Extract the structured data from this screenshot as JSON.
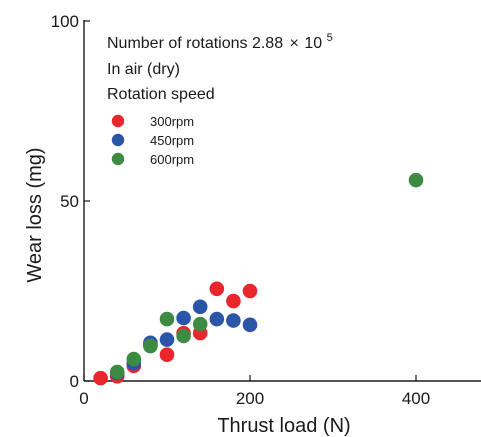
{
  "chart_data": {
    "type": "scatter",
    "xlabel": "Thrust load (N)",
    "ylabel": "Wear loss (mg)",
    "xlim": [
      0,
      480
    ],
    "ylim": [
      0,
      100
    ],
    "x_ticks": [
      0,
      200,
      400
    ],
    "y_ticks": [
      0,
      50,
      100
    ],
    "x_tick_labels": [
      "0",
      "200",
      "400"
    ],
    "y_tick_labels": [
      "0",
      "50",
      "100"
    ],
    "annotations": {
      "line1_prefix": "Number of rotations  2.88",
      "line1_times": "×",
      "line1_base": "10",
      "line1_exp": "5",
      "line2": "In air (dry)",
      "line3": "Rotation speed"
    },
    "legend_position": "top-left",
    "series": [
      {
        "name": "300rpm",
        "color": "#e8262b",
        "points": [
          {
            "x": 20,
            "y": 0.8
          },
          {
            "x": 40,
            "y": 1.3
          },
          {
            "x": 60,
            "y": 4.2
          },
          {
            "x": 80,
            "y": 10.0
          },
          {
            "x": 100,
            "y": 7.3
          },
          {
            "x": 120,
            "y": 13.3
          },
          {
            "x": 140,
            "y": 13.3
          },
          {
            "x": 160,
            "y": 25.6
          },
          {
            "x": 180,
            "y": 22.2
          },
          {
            "x": 200,
            "y": 25.0
          }
        ]
      },
      {
        "name": "450rpm",
        "color": "#2b55a8",
        "points": [
          {
            "x": 40,
            "y": 2.2
          },
          {
            "x": 60,
            "y": 4.9
          },
          {
            "x": 80,
            "y": 10.6
          },
          {
            "x": 100,
            "y": 11.5
          },
          {
            "x": 120,
            "y": 17.5
          },
          {
            "x": 140,
            "y": 20.6
          },
          {
            "x": 160,
            "y": 17.2
          },
          {
            "x": 180,
            "y": 16.8
          },
          {
            "x": 200,
            "y": 15.6
          }
        ]
      },
      {
        "name": "600rpm",
        "color": "#3d8a43",
        "points": [
          {
            "x": 40,
            "y": 2.5
          },
          {
            "x": 60,
            "y": 6.1
          },
          {
            "x": 80,
            "y": 9.7
          },
          {
            "x": 100,
            "y": 17.2
          },
          {
            "x": 120,
            "y": 12.5
          },
          {
            "x": 140,
            "y": 15.8
          },
          {
            "x": 400,
            "y": 55.8
          }
        ]
      }
    ]
  }
}
